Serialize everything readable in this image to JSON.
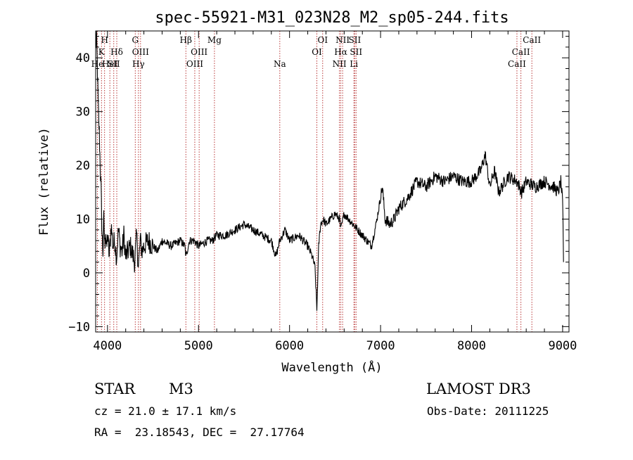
{
  "chart_data": {
    "type": "line",
    "title": "spec-55921-M31_023N28_M2_sp05-244.fits",
    "xlabel": "Wavelength (Å)",
    "ylabel": "Flux (relative)",
    "xlim": [
      3870,
      9070
    ],
    "ylim": [
      -11,
      45
    ],
    "xticks": [
      4000,
      5000,
      6000,
      7000,
      8000,
      9000
    ],
    "xtick_labels": [
      "4000",
      "5000",
      "6000",
      "7000",
      "8000",
      "9000"
    ],
    "yticks": [
      -10,
      0,
      10,
      20,
      30,
      40
    ],
    "ytick_labels": [
      "−10",
      "0",
      "10",
      "20",
      "30",
      "40"
    ],
    "series": [
      {
        "name": "spectrum",
        "x": [
          3870,
          3880,
          3890,
          3900,
          3910,
          3920,
          3930,
          3940,
          3950,
          3960,
          3970,
          3980,
          3990,
          4000,
          4020,
          4040,
          4060,
          4080,
          4100,
          4120,
          4140,
          4160,
          4180,
          4200,
          4250,
          4300,
          4320,
          4340,
          4360,
          4380,
          4400,
          4450,
          4500,
          4550,
          4600,
          4700,
          4800,
          4850,
          4861,
          4900,
          4950,
          5000,
          5100,
          5150,
          5200,
          5300,
          5400,
          5500,
          5600,
          5700,
          5800,
          5850,
          5893,
          5950,
          6000,
          6100,
          6200,
          6250,
          6280,
          6300,
          6320,
          6340,
          6370,
          6400,
          6450,
          6500,
          6550,
          6563,
          6600,
          6650,
          6700,
          6750,
          6800,
          6850,
          6900,
          6950,
          7000,
          7020,
          7050,
          7100,
          7150,
          7200,
          7300,
          7400,
          7500,
          7600,
          7700,
          7800,
          7900,
          8000,
          8100,
          8150,
          8200,
          8250,
          8300,
          8400,
          8500,
          8550,
          8600,
          8700,
          8800,
          8900,
          8950,
          8980,
          9000,
          9010
        ],
        "values": [
          42,
          44,
          37,
          30,
          26,
          20,
          15,
          7,
          4,
          10,
          5,
          8,
          4,
          7,
          3,
          9,
          5,
          6,
          3,
          8,
          5,
          4,
          7,
          3,
          5,
          2,
          7,
          1,
          6,
          4,
          5,
          6,
          5,
          4,
          6,
          5,
          6,
          5,
          3,
          6,
          6,
          5,
          6,
          6,
          7,
          7,
          8,
          9,
          8,
          7,
          6,
          3,
          6,
          8,
          6,
          7,
          5,
          3,
          1,
          -7,
          5,
          9,
          10,
          9,
          10,
          11,
          10,
          8,
          11,
          10,
          9,
          8,
          7,
          6,
          5,
          9,
          14,
          16,
          10,
          9,
          10,
          12,
          14,
          17,
          16,
          18,
          17,
          18,
          17,
          17,
          19,
          22,
          16,
          19,
          15,
          18,
          17,
          15,
          17,
          16,
          17,
          16,
          15,
          17,
          13,
          2
        ]
      }
    ],
    "lines": [
      {
        "x": 3889,
        "label": "He",
        "row": 3
      },
      {
        "x": 3934,
        "label": "K",
        "row": 2
      },
      {
        "x": 3968,
        "label": "H",
        "row": 1
      },
      {
        "x": 4026,
        "label": "HeI",
        "row": 3
      },
      {
        "x": 4069,
        "label": "SII",
        "row": 3
      },
      {
        "x": 4102,
        "label": "Hδ",
        "row": 2
      },
      {
        "x": 4305,
        "label": "G",
        "row": 1
      },
      {
        "x": 4340,
        "label": "Hγ",
        "row": 3
      },
      {
        "x": 4363,
        "label": "OIII",
        "row": 2
      },
      {
        "x": 4861,
        "label": "Hβ",
        "row": 1
      },
      {
        "x": 4959,
        "label": "OIII",
        "row": 3
      },
      {
        "x": 5007,
        "label": "OIII",
        "row": 2
      },
      {
        "x": 5175,
        "label": "Mg",
        "row": 1
      },
      {
        "x": 5893,
        "label": "Na",
        "row": 3
      },
      {
        "x": 6300,
        "label": "OI",
        "row": 2
      },
      {
        "x": 6364,
        "label": "OI",
        "row": 1
      },
      {
        "x": 6548,
        "label": "NII",
        "row": 3
      },
      {
        "x": 6563,
        "label": "Hα",
        "row": 2
      },
      {
        "x": 6583,
        "label": "NII",
        "row": 1
      },
      {
        "x": 6707,
        "label": "Li",
        "row": 3
      },
      {
        "x": 6716,
        "label": "SII",
        "row": 1
      },
      {
        "x": 6731,
        "label": "SII",
        "row": 2
      },
      {
        "x": 8498,
        "label": "CaII",
        "row": 3
      },
      {
        "x": 8542,
        "label": "CaII",
        "row": 2
      },
      {
        "x": 8662,
        "label": "CaII",
        "row": 1
      }
    ]
  },
  "info": {
    "class": "STAR",
    "subclass": "M3",
    "survey": "LAMOST DR3",
    "cz": "cz = 21.0 ± 17.1 km/s",
    "obs_date": "Obs-Date: 20111225",
    "radec": "RA =  23.18543, DEC =  27.17764"
  },
  "colors": {
    "spectrum": "#000000",
    "line_marker": "#b22222",
    "axes": "#000000"
  }
}
